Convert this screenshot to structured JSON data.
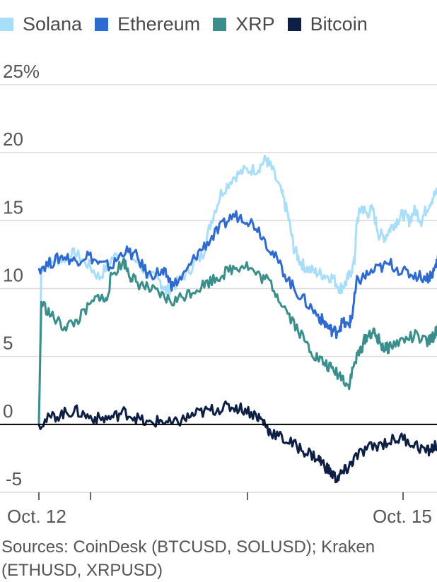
{
  "chart_data": {
    "type": "line",
    "x_unit": "days",
    "xlim": [
      "Oct. 12",
      "Oct. 15"
    ],
    "ylim": [
      -5,
      25
    ],
    "yticks": [
      -5,
      0,
      5,
      10,
      15,
      20,
      25
    ],
    "ytick_labels": [
      "-5",
      "0",
      "5",
      "10",
      "15",
      "20",
      "25%"
    ],
    "xticks": [
      "Oct. 12",
      "",
      "",
      "",
      "",
      "",
      "",
      "",
      "Oct. 15"
    ],
    "xtick_labels_shown": [
      "Oct. 12",
      "Oct. 15"
    ],
    "grid": true,
    "legend_position": "top",
    "series": [
      {
        "name": "Solana",
        "color": "#a9defa",
        "points": [
          [
            0,
            0
          ],
          [
            0.02,
            11.5
          ],
          [
            0.1,
            12.0
          ],
          [
            0.2,
            12.2
          ],
          [
            0.3,
            12.6
          ],
          [
            0.4,
            11.8
          ],
          [
            0.5,
            10.8
          ],
          [
            0.6,
            12.2
          ],
          [
            0.7,
            12.8
          ],
          [
            0.8,
            12.0
          ],
          [
            0.9,
            11.0
          ],
          [
            1.0,
            10.5
          ],
          [
            1.05,
            9.8
          ],
          [
            1.15,
            10.5
          ],
          [
            1.25,
            11.5
          ],
          [
            1.35,
            12.5
          ],
          [
            1.42,
            15.0
          ],
          [
            1.5,
            17.0
          ],
          [
            1.6,
            18.2
          ],
          [
            1.7,
            18.7
          ],
          [
            1.8,
            18.8
          ],
          [
            1.87,
            19.5
          ],
          [
            1.92,
            18.8
          ],
          [
            2.0,
            17.0
          ],
          [
            2.05,
            15.5
          ],
          [
            2.1,
            13.0
          ],
          [
            2.15,
            12.0
          ],
          [
            2.2,
            11.5
          ],
          [
            2.28,
            11.2
          ],
          [
            2.35,
            11.0
          ],
          [
            2.42,
            10.8
          ],
          [
            2.48,
            10.0
          ],
          [
            2.52,
            10.3
          ],
          [
            2.56,
            11.0
          ],
          [
            2.6,
            12.0
          ],
          [
            2.62,
            15.0
          ],
          [
            2.66,
            16.0
          ],
          [
            2.7,
            15.5
          ],
          [
            2.75,
            15.8
          ],
          [
            2.8,
            14.0
          ],
          [
            2.85,
            13.8
          ],
          [
            2.9,
            14.5
          ],
          [
            2.95,
            15.0
          ],
          [
            3.0,
            15.5
          ],
          [
            3.05,
            15.0
          ],
          [
            3.1,
            15.8
          ],
          [
            3.15,
            15.0
          ],
          [
            3.2,
            16.0
          ],
          [
            3.25,
            16.8
          ],
          [
            3.3,
            17.2
          ],
          [
            3.33,
            18.3
          ],
          [
            3.35,
            17.5
          ]
        ]
      },
      {
        "name": "Ethereum",
        "color": "#2f6ad0",
        "points": [
          [
            0,
            11.5
          ],
          [
            0.1,
            11.9
          ],
          [
            0.2,
            12.4
          ],
          [
            0.3,
            12.0
          ],
          [
            0.4,
            12.5
          ],
          [
            0.5,
            11.8
          ],
          [
            0.6,
            11.6
          ],
          [
            0.7,
            12.8
          ],
          [
            0.8,
            12.4
          ],
          [
            0.9,
            11.0
          ],
          [
            1.0,
            11.2
          ],
          [
            1.05,
            11.0
          ],
          [
            1.1,
            10.2
          ],
          [
            1.2,
            11.0
          ],
          [
            1.3,
            12.5
          ],
          [
            1.4,
            13.5
          ],
          [
            1.5,
            14.5
          ],
          [
            1.6,
            15.4
          ],
          [
            1.7,
            15.2
          ],
          [
            1.8,
            14.5
          ],
          [
            1.9,
            13.0
          ],
          [
            2.0,
            11.5
          ],
          [
            2.1,
            10.0
          ],
          [
            2.2,
            9.0
          ],
          [
            2.3,
            8.0
          ],
          [
            2.35,
            7.5
          ],
          [
            2.4,
            7.0
          ],
          [
            2.45,
            6.8
          ],
          [
            2.5,
            7.5
          ],
          [
            2.55,
            7.2
          ],
          [
            2.58,
            8.0
          ],
          [
            2.62,
            10.5
          ],
          [
            2.7,
            11.0
          ],
          [
            2.8,
            11.5
          ],
          [
            2.9,
            11.8
          ],
          [
            3.0,
            11.2
          ],
          [
            3.1,
            11.0
          ],
          [
            3.2,
            10.8
          ],
          [
            3.25,
            11.2
          ],
          [
            3.28,
            12.0
          ],
          [
            3.3,
            12.8
          ],
          [
            3.33,
            13.2
          ],
          [
            3.35,
            12.7
          ]
        ]
      },
      {
        "name": "XRP",
        "color": "#3a8f8c",
        "points": [
          [
            0,
            0
          ],
          [
            0.02,
            9.0
          ],
          [
            0.1,
            8.0
          ],
          [
            0.2,
            7.2
          ],
          [
            0.3,
            7.5
          ],
          [
            0.4,
            8.5
          ],
          [
            0.5,
            9.5
          ],
          [
            0.55,
            9.0
          ],
          [
            0.6,
            11.0
          ],
          [
            0.7,
            12.0
          ],
          [
            0.75,
            11.0
          ],
          [
            0.8,
            10.5
          ],
          [
            0.9,
            10.0
          ],
          [
            1.0,
            9.5
          ],
          [
            1.1,
            9.0
          ],
          [
            1.2,
            9.5
          ],
          [
            1.3,
            10.0
          ],
          [
            1.4,
            10.5
          ],
          [
            1.5,
            11.0
          ],
          [
            1.6,
            11.5
          ],
          [
            1.7,
            11.8
          ],
          [
            1.8,
            11.0
          ],
          [
            1.9,
            10.5
          ],
          [
            2.0,
            9.0
          ],
          [
            2.1,
            7.5
          ],
          [
            2.2,
            6.0
          ],
          [
            2.28,
            5.0
          ],
          [
            2.35,
            4.5
          ],
          [
            2.42,
            4.0
          ],
          [
            2.5,
            3.5
          ],
          [
            2.55,
            2.8
          ],
          [
            2.6,
            4.5
          ],
          [
            2.65,
            5.5
          ],
          [
            2.7,
            6.5
          ],
          [
            2.75,
            6.8
          ],
          [
            2.8,
            6.2
          ],
          [
            2.85,
            5.5
          ],
          [
            2.9,
            5.8
          ],
          [
            3.0,
            6.2
          ],
          [
            3.1,
            6.5
          ],
          [
            3.2,
            6.0
          ],
          [
            3.25,
            6.5
          ],
          [
            3.3,
            7.2
          ],
          [
            3.33,
            8.0
          ],
          [
            3.35,
            7.0
          ]
        ]
      },
      {
        "name": "Bitcoin",
        "color": "#0d1f45",
        "points": [
          [
            0,
            0
          ],
          [
            0.1,
            0.5
          ],
          [
            0.2,
            0.8
          ],
          [
            0.3,
            1.0
          ],
          [
            0.4,
            0.6
          ],
          [
            0.5,
            0.4
          ],
          [
            0.6,
            0.5
          ],
          [
            0.7,
            0.9
          ],
          [
            0.8,
            0.5
          ],
          [
            0.9,
            0.0
          ],
          [
            1.0,
            0.3
          ],
          [
            1.1,
            0.0
          ],
          [
            1.2,
            0.4
          ],
          [
            1.3,
            0.8
          ],
          [
            1.4,
            1.0
          ],
          [
            1.5,
            1.2
          ],
          [
            1.6,
            1.3
          ],
          [
            1.7,
            1.1
          ],
          [
            1.8,
            0.6
          ],
          [
            1.85,
            0.2
          ],
          [
            1.9,
            -0.5
          ],
          [
            2.0,
            -1.0
          ],
          [
            2.1,
            -1.5
          ],
          [
            2.2,
            -2.0
          ],
          [
            2.3,
            -2.5
          ],
          [
            2.35,
            -3.0
          ],
          [
            2.4,
            -3.5
          ],
          [
            2.45,
            -4.0
          ],
          [
            2.5,
            -3.6
          ],
          [
            2.55,
            -3.2
          ],
          [
            2.6,
            -2.5
          ],
          [
            2.7,
            -1.8
          ],
          [
            2.8,
            -1.5
          ],
          [
            2.9,
            -1.2
          ],
          [
            3.0,
            -1.0
          ],
          [
            3.1,
            -1.5
          ],
          [
            3.2,
            -2.0
          ],
          [
            3.25,
            -1.7
          ],
          [
            3.3,
            -1.4
          ],
          [
            3.35,
            -1.0
          ]
        ]
      }
    ]
  },
  "source_text": "Sources: CoinDesk (BTCUSD, SOLUSD); Kraken (ETHUSD, XRPUSD)"
}
